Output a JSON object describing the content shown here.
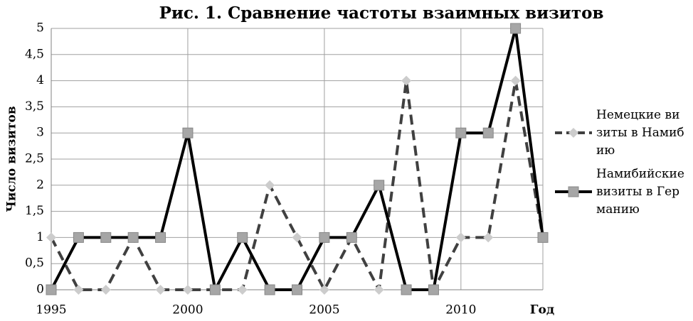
{
  "chart_data": {
    "type": "line",
    "title": "Рис. 1. Сравнение частоты взаимных визитов",
    "x_label": "Год",
    "y_label": "Число визитов",
    "x": [
      1995,
      1996,
      1997,
      1998,
      1999,
      2000,
      2001,
      2002,
      2003,
      2004,
      2005,
      2006,
      2007,
      2008,
      2009,
      2010,
      2011,
      2012,
      2013
    ],
    "series": [
      {
        "name": "Немецкие визиты в Намибию",
        "color": "#404040",
        "marker_color": "#cccccc",
        "marker": "diamond",
        "line_style": "dashed",
        "values": [
          1,
          0,
          0,
          1,
          0,
          0,
          0,
          0,
          2,
          1,
          0,
          1,
          0,
          4,
          0,
          1,
          1,
          4,
          1
        ]
      },
      {
        "name": "Намибийские визиты в Германию",
        "color": "#000000",
        "marker_color": "#a6a6a6",
        "marker": "square",
        "line_style": "solid",
        "values": [
          0,
          1,
          1,
          1,
          1,
          3,
          0,
          1,
          0,
          0,
          1,
          1,
          2,
          0,
          0,
          3,
          3,
          5,
          1
        ]
      }
    ],
    "xlim": [
      1995,
      2013
    ],
    "xticks": [
      1995,
      2000,
      2005,
      2010
    ],
    "ylim": [
      0,
      5
    ],
    "yticks": [
      0,
      {
        "value": 0.5,
        "label": "0,5"
      },
      1,
      {
        "value": 1.5,
        "label": "1,5"
      },
      2,
      {
        "value": 2.5,
        "label": "2,5"
      },
      3,
      {
        "value": 3.5,
        "label": "3,5"
      },
      4,
      {
        "value": 4.5,
        "label": "4,5"
      },
      5
    ],
    "grid": true,
    "legend_position": "right"
  }
}
